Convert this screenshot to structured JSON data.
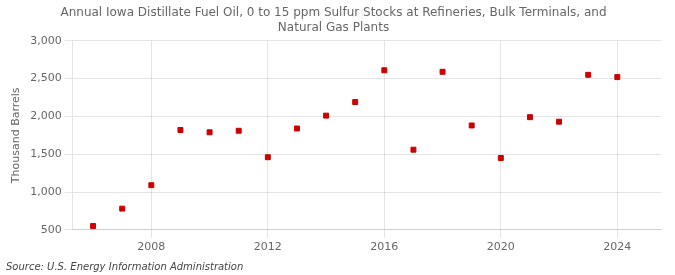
{
  "chart_data": {
    "type": "scatter",
    "title": [
      "Annual Iowa Distillate Fuel Oil, 0 to 15 ppm Sulfur Stocks at Refineries, Bulk Terminals, and",
      "Natural Gas Plants"
    ],
    "ylabel": "Thousand Barrels",
    "annotation": "Source: U.S. Energy Information Administration",
    "x": [
      2006,
      2007,
      2008,
      2009,
      2010,
      2011,
      2012,
      2013,
      2014,
      2015,
      2016,
      2017,
      2018,
      2019,
      2020,
      2021,
      2022,
      2023,
      2024
    ],
    "values": [
      550,
      780,
      1090,
      1820,
      1790,
      1810,
      1460,
      1840,
      2010,
      2190,
      2610,
      1560,
      2590,
      1880,
      1450,
      1990,
      1930,
      2550,
      2520
    ],
    "color": "#cc0000",
    "marker": "square",
    "xlim": [
      2005.3,
      2025.5
    ],
    "xticks": [
      2008,
      2012,
      2016,
      2020,
      2024
    ],
    "ylim": [
      500,
      3000
    ],
    "yticks": [
      500,
      {
        "value": 1000,
        "label": "1,000"
      },
      {
        "value": 1500,
        "label": "1,500"
      },
      {
        "value": 2000,
        "label": "2,000"
      },
      {
        "value": 2500,
        "label": "2,500"
      },
      {
        "value": 3000,
        "label": "3,000"
      }
    ],
    "grid": true
  }
}
